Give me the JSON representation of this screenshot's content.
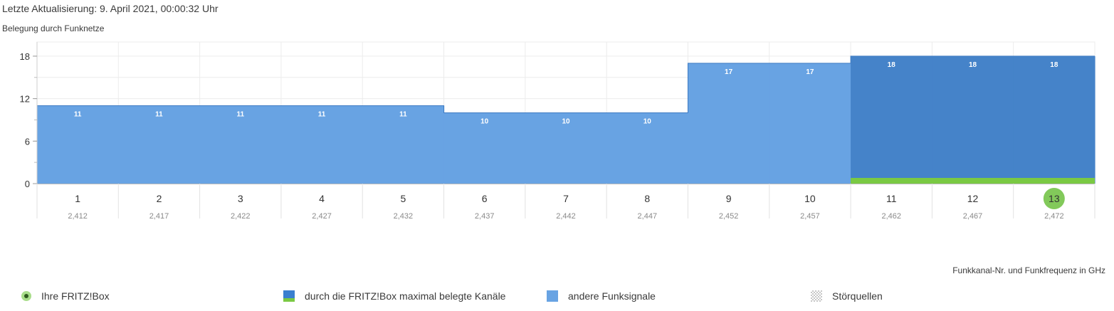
{
  "last_update": "Letzte Aktualisierung: 9. April 2021, 00:00:32 Uhr",
  "chart_title": "Belegung durch Funknetze",
  "chart_data": {
    "type": "bar",
    "title": "Belegung durch Funknetze",
    "xlabel": "Funkkanal-Nr. und Funkfrequenz in GHz",
    "ylabel": "",
    "ylim": [
      0,
      20
    ],
    "yticks": [
      0,
      6,
      12,
      18
    ],
    "grid": true,
    "legend_position": "bottom",
    "categories": [
      "1",
      "2",
      "3",
      "4",
      "5",
      "6",
      "7",
      "8",
      "9",
      "10",
      "11",
      "12",
      "13"
    ],
    "frequencies": [
      "2,412",
      "2,417",
      "2,422",
      "2,427",
      "2,432",
      "2,437",
      "2,442",
      "2,447",
      "2,452",
      "2,457",
      "2,462",
      "2,467",
      "2,472"
    ],
    "values": [
      11,
      11,
      11,
      11,
      11,
      10,
      10,
      10,
      17,
      17,
      18,
      18,
      18
    ],
    "max_used_channels": [
      "11",
      "12",
      "13"
    ],
    "own_channel": "13",
    "colors": {
      "other": "#68a3e3",
      "max_used": "#4583c9",
      "own": "#7ac943",
      "own_marker": "#82c95a"
    }
  },
  "legend": {
    "own": "Ihre FRITZ!Box",
    "max_used": "durch die FRITZ!Box maximal belegte Kanäle",
    "other": "andere Funksignale",
    "interference": "Störquellen"
  }
}
